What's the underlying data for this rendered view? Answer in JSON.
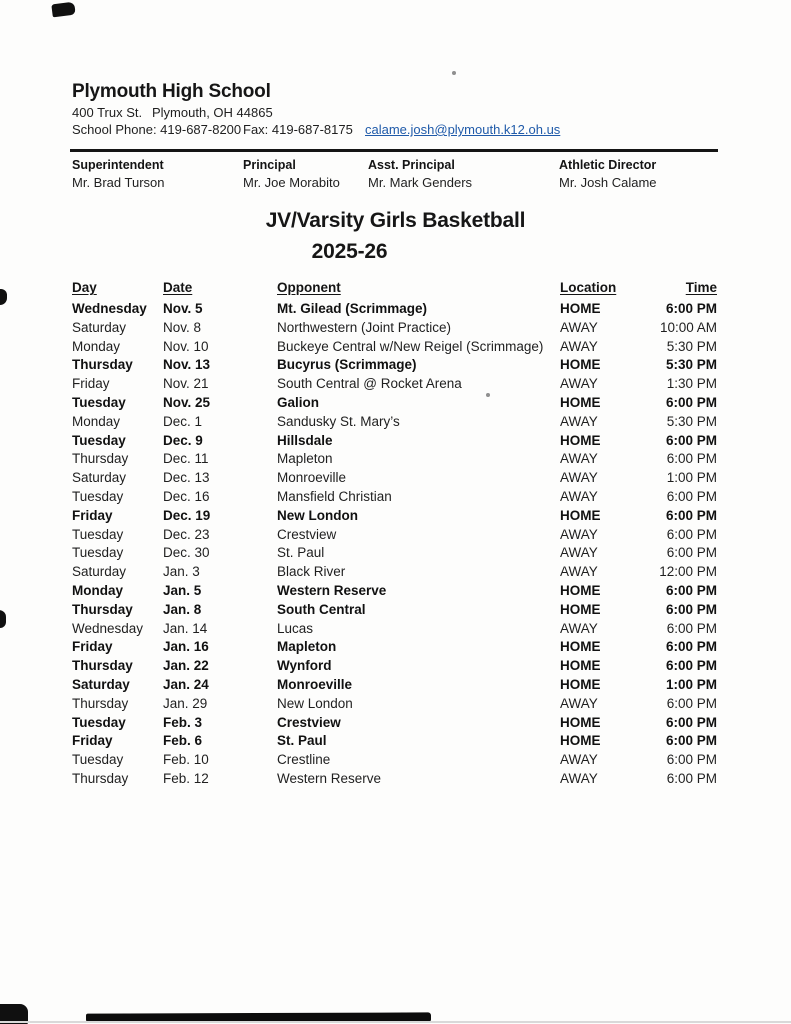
{
  "school": {
    "name": "Plymouth High School",
    "address_street": "400 Trux St.",
    "address_city": "Plymouth, OH 44865",
    "phone_label": "School Phone: 419-687-8200",
    "fax_label": "Fax: 419-687-8175",
    "email": "calame.josh@plymouth.k12.oh.us"
  },
  "staff": [
    {
      "role": "Superintendent",
      "name": "Mr. Brad Turson"
    },
    {
      "role": "Principal",
      "name": "Mr. Joe Morabito"
    },
    {
      "role": "Asst. Principal",
      "name": "Mr. Mark Genders"
    },
    {
      "role": "Athletic Director",
      "name": "Mr. Josh Calame"
    }
  ],
  "title": {
    "line1": "JV/Varsity Girls Basketball",
    "line2": "2025-26"
  },
  "schedule": {
    "columns": [
      "Day",
      "Date",
      "Opponent",
      "Location",
      "Time"
    ],
    "rows": [
      {
        "day": "Wednesday",
        "date": "Nov. 5",
        "opponent": "Mt. Gilead (Scrimmage)",
        "location": "HOME",
        "time": "6:00 PM",
        "home": true
      },
      {
        "day": "Saturday",
        "date": "Nov. 8",
        "opponent": "Northwestern (Joint Practice)",
        "location": "AWAY",
        "time": "10:00 AM",
        "home": false
      },
      {
        "day": "Monday",
        "date": "Nov. 10",
        "opponent": "Buckeye Central w/New Reigel (Scrimmage)",
        "location": "AWAY",
        "time": "5:30 PM",
        "home": false
      },
      {
        "day": "Thursday",
        "date": "Nov. 13",
        "opponent": "Bucyrus (Scrimmage)",
        "location": "HOME",
        "time": "5:30 PM",
        "home": true
      },
      {
        "day": "Friday",
        "date": "Nov. 21",
        "opponent": "South Central @ Rocket Arena",
        "location": "AWAY",
        "time": "1:30 PM",
        "home": false
      },
      {
        "day": "Tuesday",
        "date": "Nov. 25",
        "opponent": "Galion",
        "location": "HOME",
        "time": "6:00 PM",
        "home": true
      },
      {
        "day": "Monday",
        "date": "Dec. 1",
        "opponent": "Sandusky St. Mary’s",
        "location": "AWAY",
        "time": "5:30 PM",
        "home": false
      },
      {
        "day": "Tuesday",
        "date": "Dec. 9",
        "opponent": "Hillsdale",
        "location": "HOME",
        "time": "6:00 PM",
        "home": true
      },
      {
        "day": "Thursday",
        "date": "Dec. 11",
        "opponent": "Mapleton",
        "location": "AWAY",
        "time": "6:00 PM",
        "home": false
      },
      {
        "day": "Saturday",
        "date": "Dec. 13",
        "opponent": "Monroeville",
        "location": "AWAY",
        "time": "1:00 PM",
        "home": false
      },
      {
        "day": "Tuesday",
        "date": "Dec. 16",
        "opponent": "Mansfield Christian",
        "location": "AWAY",
        "time": "6:00 PM",
        "home": false
      },
      {
        "day": "Friday",
        "date": "Dec. 19",
        "opponent": "New London",
        "location": "HOME",
        "time": "6:00 PM",
        "home": true
      },
      {
        "day": "Tuesday",
        "date": "Dec. 23",
        "opponent": "Crestview",
        "location": "AWAY",
        "time": "6:00 PM",
        "home": false
      },
      {
        "day": "Tuesday",
        "date": "Dec. 30",
        "opponent": "St. Paul",
        "location": "AWAY",
        "time": "6:00 PM",
        "home": false
      },
      {
        "day": "Saturday",
        "date": "Jan. 3",
        "opponent": "Black River",
        "location": "AWAY",
        "time": "12:00 PM",
        "home": false
      },
      {
        "day": "Monday",
        "date": "Jan. 5",
        "opponent": "Western Reserve",
        "location": "HOME",
        "time": "6:00 PM",
        "home": true
      },
      {
        "day": "Thursday",
        "date": "Jan. 8",
        "opponent": "South Central",
        "location": "HOME",
        "time": "6:00 PM",
        "home": true
      },
      {
        "day": "Wednesday",
        "date": "Jan. 14",
        "opponent": "Lucas",
        "location": "AWAY",
        "time": "6:00 PM",
        "home": false
      },
      {
        "day": "Friday",
        "date": "Jan. 16",
        "opponent": "Mapleton",
        "location": "HOME",
        "time": "6:00 PM",
        "home": true
      },
      {
        "day": "Thursday",
        "date": "Jan. 22",
        "opponent": "Wynford",
        "location": "HOME",
        "time": "6:00 PM",
        "home": true
      },
      {
        "day": "Saturday",
        "date": "Jan. 24",
        "opponent": "Monroeville",
        "location": "HOME",
        "time": "1:00 PM",
        "home": true
      },
      {
        "day": "Thursday",
        "date": "Jan. 29",
        "opponent": "New London",
        "location": "AWAY",
        "time": "6:00 PM",
        "home": false
      },
      {
        "day": "Tuesday",
        "date": "Feb. 3",
        "opponent": "Crestview",
        "location": "HOME",
        "time": "6:00 PM",
        "home": true
      },
      {
        "day": "Friday",
        "date": "Feb. 6",
        "opponent": "St. Paul",
        "location": "HOME",
        "time": "6:00 PM",
        "home": true
      },
      {
        "day": "Tuesday",
        "date": "Feb. 10",
        "opponent": "Crestline",
        "location": "AWAY",
        "time": "6:00 PM",
        "home": false
      },
      {
        "day": "Thursday",
        "date": "Feb. 12",
        "opponent": "Western Reserve",
        "location": "AWAY",
        "time": "6:00 PM",
        "home": false
      }
    ]
  },
  "colors": {
    "link_blue": "#1f5aa9",
    "text": "#1f1f1f"
  }
}
